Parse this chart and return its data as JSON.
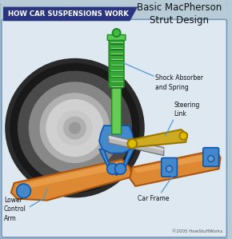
{
  "title": "Basic MacPherson\nStrut Design",
  "header_text": "HOW CAR SUSPENSIONS WORK",
  "header_bg": "#2a3580",
  "header_text_color": "#ffffff",
  "outer_bg": "#b8ccd8",
  "inner_bg": "#dde8f0",
  "border_color": "#7799bb",
  "copyright": "©2005 HowStuffWorks",
  "labels": {
    "shock": "Shock Absorber\nand Spring",
    "steering": "Steering\nLink",
    "lower_arm": "Lower\nControl\nArm",
    "car_frame": "Car Frame"
  },
  "label_color": "#111111",
  "line_color": "#5599cc",
  "title_color": "#111111",
  "tire_dark": "#2a2a2a",
  "tire_mid": "#444444",
  "tire_inner_dark": "#555555",
  "tire_gray": "#909090",
  "tire_hub": "#d0d0d0",
  "spring_green": "#44bb44",
  "spring_dark": "#228822",
  "strut_green": "#66cc55",
  "blue_part": "#4488cc",
  "blue_dark": "#1155aa",
  "orange_part": "#dd8833",
  "orange_light": "#f0aa55",
  "orange_dark": "#aa5511",
  "gold_part": "#ccaa22",
  "gold_dark": "#997700",
  "axle_color": "#aaaaaa",
  "axle_dark": "#777777"
}
